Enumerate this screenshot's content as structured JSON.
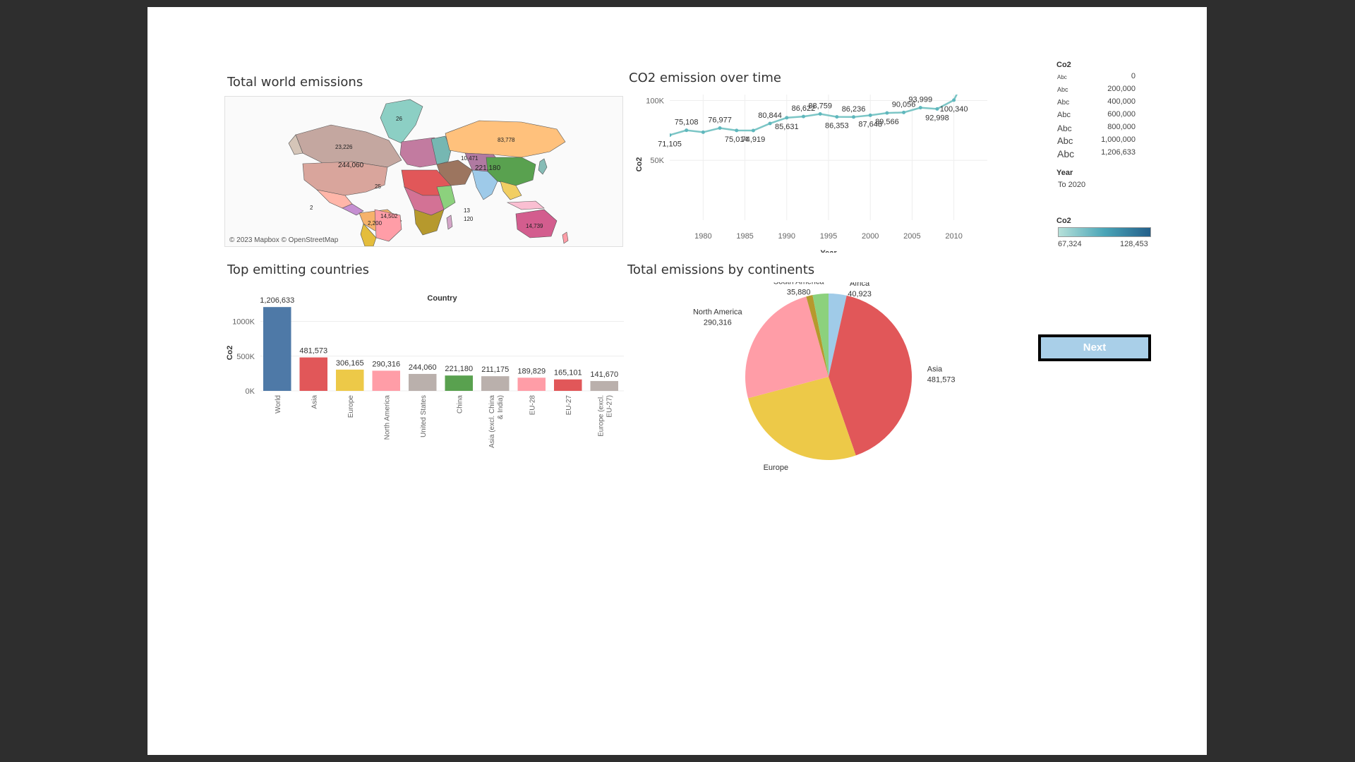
{
  "dashboard": {
    "map_title": "Total world emissions",
    "line_title": "CO2 emission over time",
    "bar_title": "Top emitting countries",
    "pie_title": "Total emissions by continents",
    "next_label": "Next"
  },
  "map": {
    "credit": "© 2023 Mapbox © OpenStreetMap",
    "labels": [
      "26",
      "83,778",
      "23,226",
      "244,060",
      "221,180",
      "10,471",
      "14,739",
      "14,502",
      "120",
      "25",
      "13",
      "2",
      "2,200"
    ]
  },
  "size_legend": {
    "title": "Co2",
    "items": [
      {
        "label": "Abc",
        "value": "0"
      },
      {
        "label": "Abc",
        "value": "200,000"
      },
      {
        "label": "Abc",
        "value": "400,000"
      },
      {
        "label": "Abc",
        "value": "600,000"
      },
      {
        "label": "Abc",
        "value": "800,000"
      },
      {
        "label": "Abc",
        "value": "1,000,000"
      },
      {
        "label": "Abc",
        "value": "1,206,633"
      }
    ]
  },
  "year_filter": {
    "title": "Year",
    "value": "To 2020"
  },
  "color_legend": {
    "title": "Co2",
    "min": "67,324",
    "max": "128,453",
    "colors": [
      "#b6e0d9",
      "#4aa5b7",
      "#245f8a"
    ]
  },
  "chart_data": [
    {
      "type": "line",
      "title": "CO2 emission over time",
      "xlabel": "Year",
      "ylabel": "Co2",
      "xlim": [
        1976,
        2014
      ],
      "ylim": [
        0,
        105000
      ],
      "xticks": [
        1980,
        1985,
        1990,
        1995,
        2000,
        2005,
        2010
      ],
      "yticks": [
        {
          "v": 50000,
          "label": "50K"
        },
        {
          "v": 100000,
          "label": "100K"
        }
      ],
      "color": "#7cc6c6",
      "x": [
        1976,
        1978,
        1980,
        1982,
        1984,
        1986,
        1988,
        1990,
        1992,
        1994,
        1996,
        1998,
        2000,
        2002,
        2004,
        2006,
        2008,
        2010,
        2012
      ],
      "y": [
        71105,
        75108,
        73500,
        76977,
        75014,
        74919,
        80844,
        85631,
        86622,
        88759,
        86353,
        86236,
        87648,
        89566,
        90056,
        93999,
        92998,
        100340,
        128453
      ],
      "labels": [
        {
          "x": 1976,
          "y": 71105,
          "text": "71,105",
          "pos": "below"
        },
        {
          "x": 1978,
          "y": 75108,
          "text": "75,108",
          "pos": "above"
        },
        {
          "x": 1982,
          "y": 76977,
          "text": "76,977",
          "pos": "above"
        },
        {
          "x": 1984,
          "y": 75014,
          "text": "75,014",
          "pos": "below"
        },
        {
          "x": 1986,
          "y": 74919,
          "text": "74,919",
          "pos": "below"
        },
        {
          "x": 1988,
          "y": 80844,
          "text": "80,844",
          "pos": "above"
        },
        {
          "x": 1990,
          "y": 85631,
          "text": "85,631",
          "pos": "below"
        },
        {
          "x": 1992,
          "y": 86622,
          "text": "86,622",
          "pos": "above"
        },
        {
          "x": 1994,
          "y": 88759,
          "text": "88,759",
          "pos": "above"
        },
        {
          "x": 1996,
          "y": 86353,
          "text": "86,353",
          "pos": "below"
        },
        {
          "x": 1998,
          "y": 86236,
          "text": "86,236",
          "pos": "above"
        },
        {
          "x": 2000,
          "y": 87648,
          "text": "87,648",
          "pos": "below"
        },
        {
          "x": 2002,
          "y": 89566,
          "text": "89,566",
          "pos": "below"
        },
        {
          "x": 2004,
          "y": 90056,
          "text": "90,056",
          "pos": "above"
        },
        {
          "x": 2006,
          "y": 93999,
          "text": "93,999",
          "pos": "above"
        },
        {
          "x": 2008,
          "y": 92998,
          "text": "92,998",
          "pos": "below"
        },
        {
          "x": 2010,
          "y": 100340,
          "text": "100,340",
          "pos": "below"
        }
      ]
    },
    {
      "type": "bar",
      "title": "Top emitting countries",
      "header": "Country",
      "ylabel": "Co2",
      "ylim": [
        0,
        1300000
      ],
      "yticks": [
        {
          "v": 0,
          "label": "0K"
        },
        {
          "v": 500000,
          "label": "500K"
        },
        {
          "v": 1000000,
          "label": "1000K"
        }
      ],
      "categories": [
        "World",
        "Asia",
        "Europe",
        "North America",
        "United States",
        "China",
        "Asia (excl. China & India)",
        "EU-28",
        "EU-27",
        "Europe (excl. EU-27)"
      ],
      "category_lines": [
        [
          "World"
        ],
        [
          "Asia"
        ],
        [
          "Europe"
        ],
        [
          "North America"
        ],
        [
          "United States"
        ],
        [
          "China"
        ],
        [
          "Asia (excl. China",
          "& India)"
        ],
        [
          "EU-28"
        ],
        [
          "EU-27"
        ],
        [
          "Europe (excl.",
          "EU-27)"
        ]
      ],
      "values": [
        1206633,
        481573,
        306165,
        290316,
        244060,
        221180,
        211175,
        189829,
        165101,
        141670
      ],
      "value_labels": [
        "1,206,633",
        "481,573",
        "306,165",
        "290,316",
        "244,060",
        "221,180",
        "211,175",
        "189,829",
        "165,101",
        "141,670"
      ],
      "colors": [
        "#4e79a7",
        "#e15759",
        "#edc948",
        "#ff9da7",
        "#bab0ac",
        "#59a14f",
        "#bab0ac",
        "#ff9da7",
        "#e15759",
        "#bab0ac"
      ]
    },
    {
      "type": "pie",
      "title": "Total emissions by continents",
      "slices": [
        {
          "label": "Africa",
          "value": 40923,
          "value_label": "40,923",
          "color": "#a0cbe8"
        },
        {
          "label": "Asia",
          "value": 481573,
          "value_label": "481,573",
          "color": "#e15759"
        },
        {
          "label": "Europe",
          "value": 306165,
          "value_label": "306,165",
          "color": "#edc948"
        },
        {
          "label": "North America",
          "value": 290316,
          "value_label": "290,316",
          "color": "#ff9da7"
        },
        {
          "label": "Oceania",
          "value": 14739,
          "value_label": "",
          "color": "#b6992d"
        },
        {
          "label": "South America",
          "value": 35880,
          "value_label": "35,880",
          "color": "#8cd17d"
        }
      ],
      "shown_labels": [
        "Africa",
        "Asia",
        "Europe",
        "North America",
        "South America"
      ]
    }
  ]
}
